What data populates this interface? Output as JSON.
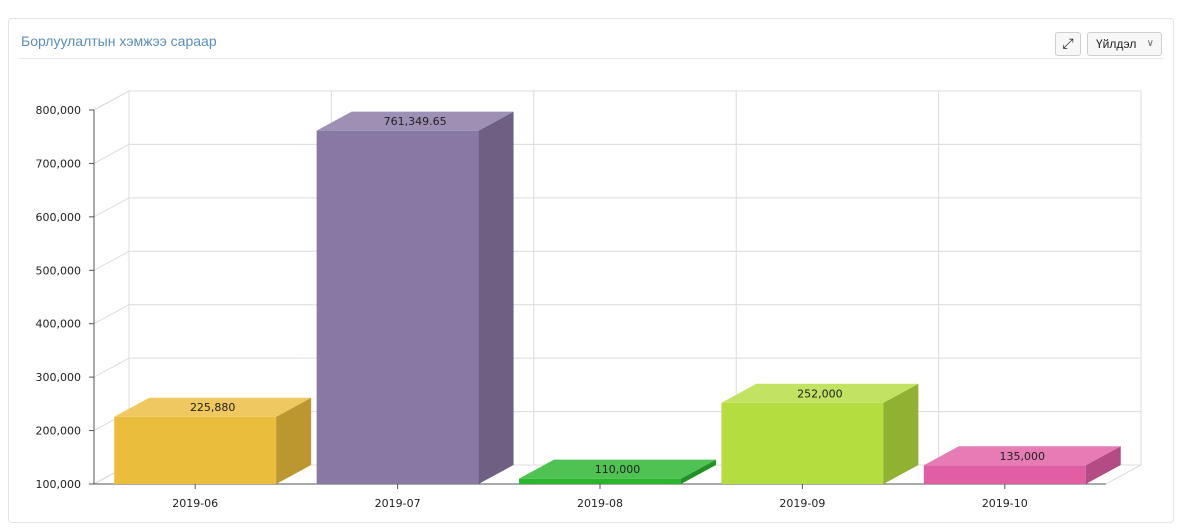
{
  "panel": {
    "title": "Борлуулалтын хэмжээ сараар",
    "expand_icon": "expand-icon",
    "action_label": "Үйлдэл",
    "action_chevron_icon": "chevron-down-icon"
  },
  "chart_data": {
    "type": "bar",
    "title": "",
    "xlabel": "",
    "ylabel": "",
    "ylim": [
      100000,
      800000
    ],
    "yticks": [
      100000,
      200000,
      300000,
      400000,
      500000,
      600000,
      700000,
      800000
    ],
    "ytick_labels": [
      "100,000",
      "200,000",
      "300,000",
      "400,000",
      "500,000",
      "600,000",
      "700,000",
      "800,000"
    ],
    "categories": [
      "2019-06",
      "2019-07",
      "2019-08",
      "2019-09",
      "2019-10"
    ],
    "values": [
      225880,
      761349.65,
      110000,
      252000,
      135000
    ],
    "value_labels": [
      "225,880",
      "761,349.65",
      "110,000",
      "252,000",
      "135,000"
    ],
    "colors": [
      "#ebbd3c",
      "#8878a4",
      "#2ab52e",
      "#b4dd3f",
      "#e15ea5"
    ],
    "grid": true,
    "style": "3d"
  }
}
